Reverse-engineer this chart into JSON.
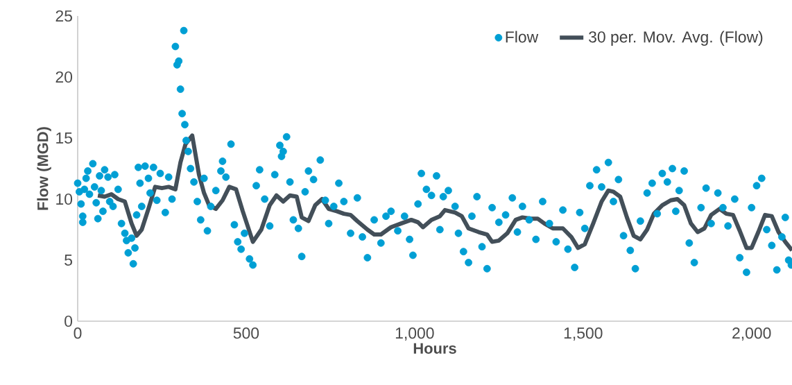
{
  "chart_data": {
    "type": "scatter",
    "xlabel": "Hours",
    "ylabel": "Flow (MGD)",
    "xlim": [
      0,
      2120
    ],
    "ylim": [
      0,
      25
    ],
    "xticks": [
      0,
      500,
      {
        "value": 1000,
        "label": "1,000"
      },
      {
        "value": 1500,
        "label": "1,500"
      },
      {
        "value": 2000,
        "label": "2,000"
      }
    ],
    "yticks": [
      0,
      5,
      10,
      15,
      20,
      25
    ],
    "grid": false,
    "legend": "top right",
    "series": [
      {
        "name": "Flow",
        "marker": "circle",
        "color": "#009fd4",
        "x": [
          0,
          5,
          10,
          15,
          15,
          20,
          25,
          30,
          35,
          45,
          50,
          55,
          60,
          65,
          70,
          75,
          80,
          90,
          95,
          105,
          110,
          120,
          130,
          140,
          145,
          150,
          160,
          165,
          170,
          175,
          180,
          185,
          190,
          200,
          210,
          215,
          225,
          235,
          245,
          260,
          270,
          280,
          290,
          295,
          300,
          305,
          310,
          315,
          318,
          322,
          328,
          335,
          345,
          355,
          365,
          375,
          385,
          395,
          410,
          425,
          430,
          440,
          455,
          465,
          475,
          485,
          495,
          510,
          520,
          530,
          540,
          555,
          570,
          585,
          600,
          605,
          610,
          620,
          630,
          640,
          655,
          665,
          675,
          685,
          700,
          720,
          735,
          745,
          760,
          775,
          790,
          810,
          830,
          845,
          860,
          880,
          900,
          915,
          930,
          950,
          970,
          985,
          995,
          1010,
          1020,
          1035,
          1050,
          1065,
          1075,
          1085,
          1100,
          1120,
          1130,
          1145,
          1160,
          1170,
          1185,
          1200,
          1215,
          1230,
          1250,
          1270,
          1290,
          1305,
          1320,
          1340,
          1360,
          1380,
          1400,
          1420,
          1440,
          1455,
          1475,
          1490,
          1505,
          1520,
          1540,
          1555,
          1575,
          1590,
          1605,
          1620,
          1640,
          1655,
          1670,
          1690,
          1705,
          1720,
          1735,
          1750,
          1765,
          1775,
          1785,
          1800,
          1815,
          1830,
          1850,
          1865,
          1880,
          1900,
          1915,
          1930,
          1950,
          1965,
          1985,
          2000,
          2015,
          2030,
          2045,
          2060,
          2075,
          2090,
          2100,
          2110,
          2118
        ],
        "values": [
          11.3,
          10.6,
          9.6,
          8.6,
          8.1,
          10.8,
          11.7,
          12.3,
          10.4,
          12.9,
          11.0,
          9.7,
          8.4,
          11.9,
          10.7,
          9.0,
          12.4,
          11.8,
          9.8,
          9.4,
          12.0,
          10.8,
          8.0,
          7.2,
          6.6,
          5.6,
          6.8,
          4.7,
          6.0,
          8.7,
          12.6,
          11.3,
          9.4,
          12.7,
          11.7,
          10.5,
          12.6,
          9.9,
          12.1,
          8.9,
          11.8,
          10.0,
          22.5,
          21.0,
          21.3,
          19.0,
          17.0,
          23.8,
          16.1,
          14.8,
          13.9,
          12.5,
          11.4,
          9.8,
          8.3,
          11.7,
          7.4,
          9.4,
          10.7,
          12.3,
          13.1,
          11.8,
          14.5,
          7.9,
          6.5,
          5.9,
          7.2,
          5.1,
          4.6,
          11.1,
          12.4,
          10.0,
          7.8,
          12.0,
          14.4,
          13.5,
          13.9,
          15.1,
          11.4,
          8.3,
          7.6,
          5.3,
          10.6,
          12.3,
          11.6,
          13.2,
          9.9,
          8.0,
          9.4,
          11.3,
          9.8,
          7.2,
          10.1,
          6.9,
          5.2,
          8.3,
          6.4,
          8.6,
          9.0,
          7.4,
          8.6,
          6.7,
          5.4,
          9.6,
          12.1,
          10.8,
          10.3,
          11.9,
          7.5,
          10.2,
          10.7,
          9.4,
          7.2,
          5.7,
          4.8,
          8.6,
          10.2,
          6.1,
          4.3,
          9.3,
          8.1,
          8.7,
          10.1,
          7.3,
          9.4,
          8.3,
          6.7,
          9.8,
          8.0,
          6.5,
          9.1,
          5.9,
          4.4,
          8.9,
          7.6,
          11.1,
          12.4,
          11.0,
          13.0,
          9.8,
          11.6,
          7.0,
          5.8,
          4.3,
          8.2,
          10.5,
          11.3,
          8.8,
          12.1,
          11.4,
          12.5,
          9.0,
          10.7,
          12.3,
          6.4,
          4.8,
          9.3,
          10.9,
          8.0,
          10.5,
          9.3,
          7.8,
          10.0,
          5.2,
          4.0,
          9.3,
          11.1,
          11.7,
          7.5,
          6.2,
          4.2,
          6.9,
          8.5,
          5.0,
          4.6
        ]
      },
      {
        "name": "30 per. Mov. Avg. (Flow)",
        "type": "line",
        "marker": "none",
        "line_style": "solid",
        "color": "#434f59",
        "x": [
          60,
          80,
          100,
          120,
          140,
          160,
          175,
          190,
          210,
          230,
          250,
          270,
          290,
          305,
          320,
          340,
          360,
          375,
          390,
          410,
          430,
          450,
          470,
          490,
          520,
          545,
          570,
          590,
          610,
          630,
          650,
          665,
          685,
          705,
          725,
          745,
          770,
          790,
          810,
          830,
          860,
          880,
          900,
          930,
          960,
          990,
          1010,
          1025,
          1050,
          1075,
          1090,
          1120,
          1140,
          1160,
          1190,
          1215,
          1230,
          1250,
          1275,
          1300,
          1320,
          1345,
          1365,
          1385,
          1410,
          1440,
          1465,
          1485,
          1505,
          1530,
          1555,
          1575,
          1590,
          1610,
          1630,
          1650,
          1670,
          1690,
          1710,
          1735,
          1760,
          1780,
          1800,
          1820,
          1840,
          1860,
          1880,
          1905,
          1925,
          1945,
          1965,
          1985,
          2000,
          2020,
          2040,
          2060,
          2080,
          2100,
          2120
        ],
        "values": [
          10.3,
          10.2,
          10.4,
          10.0,
          9.8,
          8.0,
          7.0,
          7.5,
          9.2,
          11.0,
          10.9,
          11.0,
          10.8,
          13.0,
          14.5,
          15.2,
          12.0,
          10.5,
          9.5,
          9.2,
          9.9,
          11.0,
          10.8,
          9.0,
          6.5,
          7.5,
          9.5,
          10.3,
          9.8,
          10.3,
          10.2,
          8.5,
          8.2,
          9.5,
          10.0,
          9.2,
          9.0,
          8.8,
          8.7,
          8.2,
          7.5,
          7.1,
          7.1,
          7.7,
          8.0,
          8.3,
          8.1,
          7.7,
          8.3,
          8.6,
          9.1,
          8.9,
          8.6,
          7.6,
          7.3,
          7.1,
          6.5,
          6.6,
          7.2,
          8.3,
          8.5,
          8.4,
          8.4,
          8.0,
          7.6,
          7.6,
          6.9,
          6.0,
          6.3,
          8.0,
          9.8,
          10.7,
          10.6,
          10.2,
          8.5,
          7.0,
          6.7,
          7.5,
          8.8,
          9.5,
          9.9,
          10.0,
          9.5,
          8.0,
          7.3,
          7.6,
          8.7,
          9.2,
          8.8,
          8.7,
          7.4,
          6.0,
          6.0,
          7.3,
          8.7,
          8.6,
          7.3,
          6.5,
          5.8
        ]
      }
    ]
  }
}
